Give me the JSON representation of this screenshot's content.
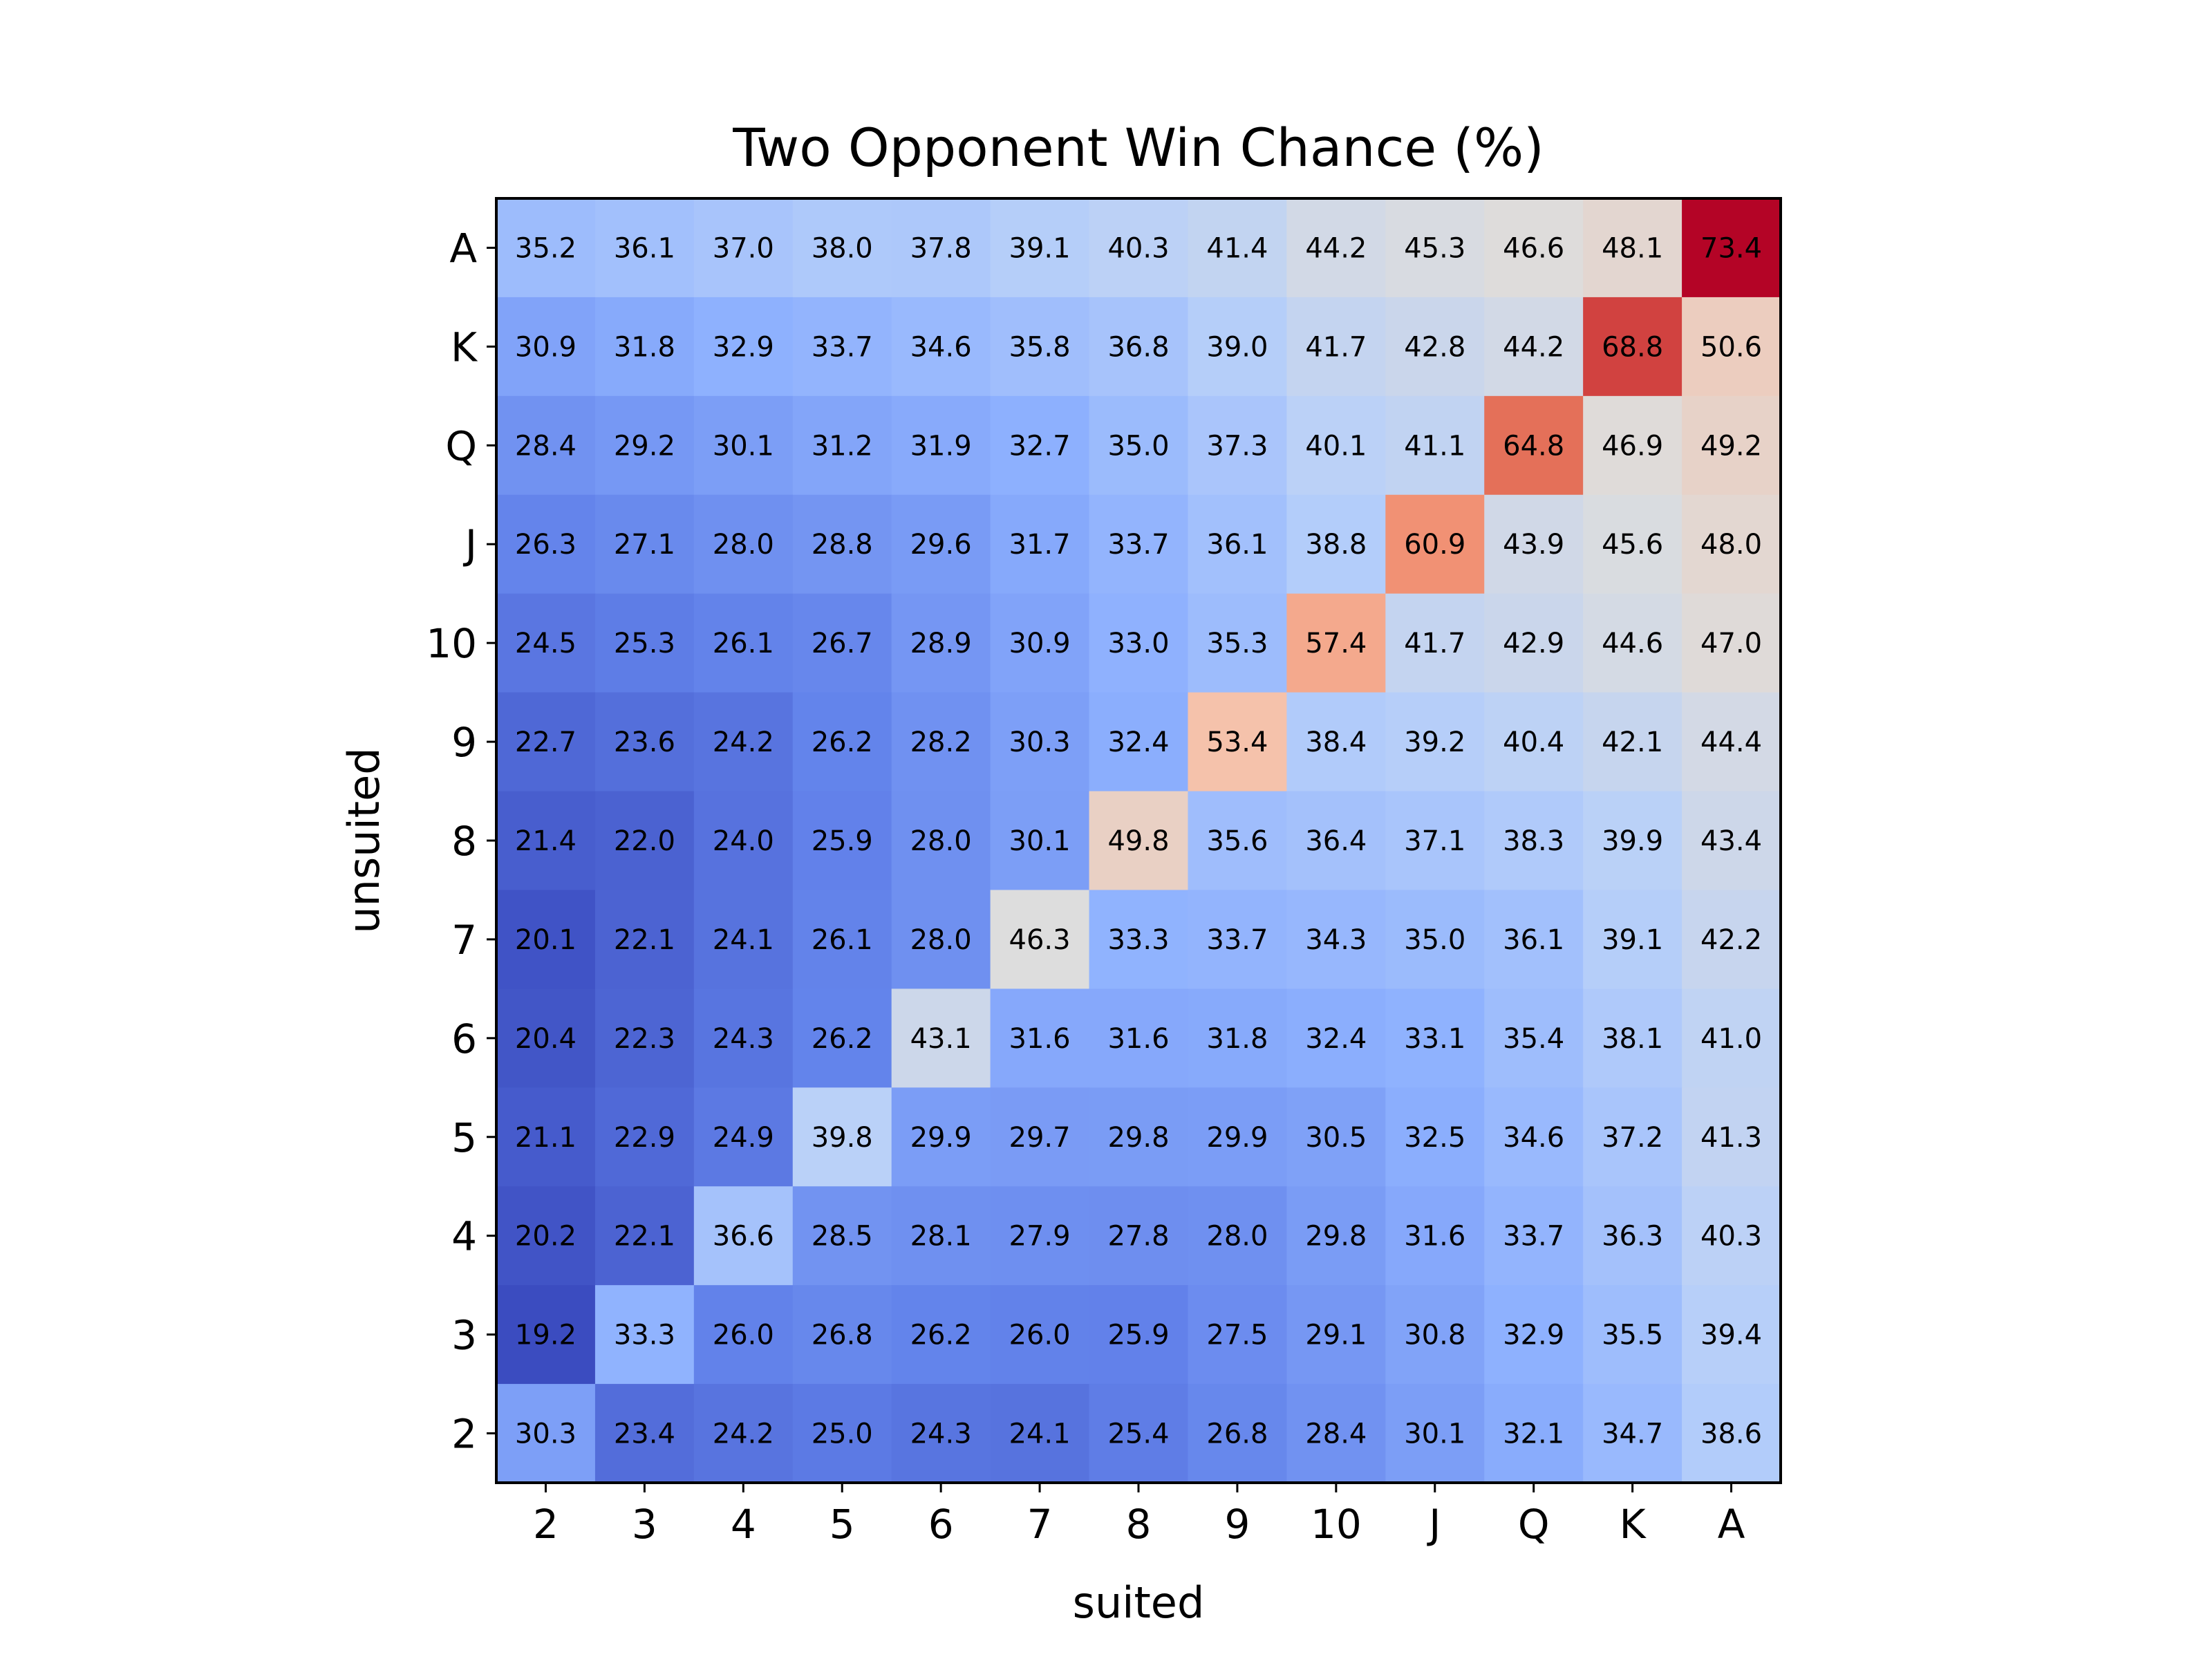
{
  "chart_data": {
    "type": "heatmap",
    "title": "Two Opponent Win Chance (%)",
    "xlabel": "suited",
    "ylabel": "unsuited",
    "x_categories": [
      "2",
      "3",
      "4",
      "5",
      "6",
      "7",
      "8",
      "9",
      "10",
      "J",
      "Q",
      "K",
      "A"
    ],
    "y_categories": [
      "A",
      "K",
      "Q",
      "J",
      "10",
      "9",
      "8",
      "7",
      "6",
      "5",
      "4",
      "3",
      "2"
    ],
    "colormap": "coolwarm",
    "color_range": [
      19.2,
      73.4
    ],
    "values": [
      [
        35.2,
        36.1,
        37.0,
        38.0,
        37.8,
        39.1,
        40.3,
        41.4,
        44.2,
        45.3,
        46.6,
        48.1,
        73.4
      ],
      [
        30.9,
        31.8,
        32.9,
        33.7,
        34.6,
        35.8,
        36.8,
        39.0,
        41.7,
        42.8,
        44.2,
        68.8,
        50.6
      ],
      [
        28.4,
        29.2,
        30.1,
        31.2,
        31.9,
        32.7,
        35.0,
        37.3,
        40.1,
        41.1,
        64.8,
        46.9,
        49.2
      ],
      [
        26.3,
        27.1,
        28.0,
        28.8,
        29.6,
        31.7,
        33.7,
        36.1,
        38.8,
        60.9,
        43.9,
        45.6,
        48.0
      ],
      [
        24.5,
        25.3,
        26.1,
        26.7,
        28.9,
        30.9,
        33.0,
        35.3,
        57.4,
        41.7,
        42.9,
        44.6,
        47.0
      ],
      [
        22.7,
        23.6,
        24.2,
        26.2,
        28.2,
        30.3,
        32.4,
        53.4,
        38.4,
        39.2,
        40.4,
        42.1,
        44.4
      ],
      [
        21.4,
        22.0,
        24.0,
        25.9,
        28.0,
        30.1,
        49.8,
        35.6,
        36.4,
        37.1,
        38.3,
        39.9,
        43.4
      ],
      [
        20.1,
        22.1,
        24.1,
        26.1,
        28.0,
        46.3,
        33.3,
        33.7,
        34.3,
        35.0,
        36.1,
        39.1,
        42.2
      ],
      [
        20.4,
        22.3,
        24.3,
        26.2,
        43.1,
        31.6,
        31.6,
        31.8,
        32.4,
        33.1,
        35.4,
        38.1,
        41.0
      ],
      [
        21.1,
        22.9,
        24.9,
        39.8,
        29.9,
        29.7,
        29.8,
        29.9,
        30.5,
        32.5,
        34.6,
        37.2,
        41.3
      ],
      [
        20.2,
        22.1,
        36.6,
        28.5,
        28.1,
        27.9,
        27.8,
        28.0,
        29.8,
        31.6,
        33.7,
        36.3,
        40.3
      ],
      [
        19.2,
        33.3,
        26.0,
        26.8,
        26.2,
        26.0,
        25.9,
        27.5,
        29.1,
        30.8,
        32.9,
        35.5,
        39.4
      ],
      [
        30.3,
        23.4,
        24.2,
        25.0,
        24.3,
        24.1,
        25.4,
        26.8,
        28.4,
        30.1,
        32.1,
        34.7,
        38.6
      ]
    ]
  }
}
